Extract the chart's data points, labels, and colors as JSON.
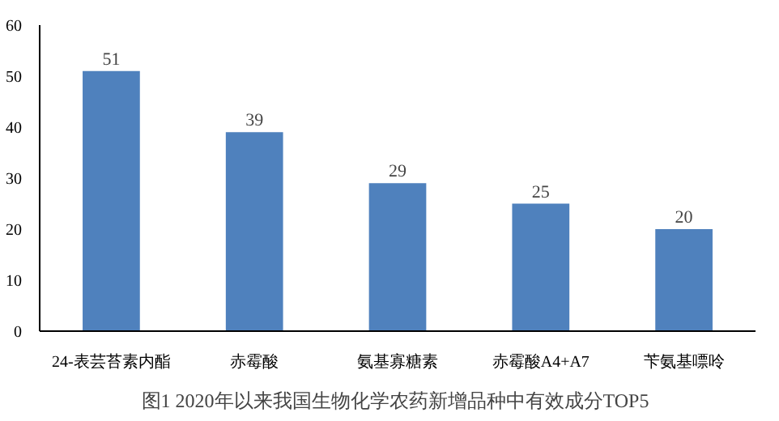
{
  "chart_data": {
    "type": "bar",
    "title": "图1  2020年以来我国生物化学农药新增品种中有效成分TOP5",
    "categories": [
      "24-表芸苔素内酯",
      "赤霉酸",
      "氨基寡糖素",
      "赤霉酸A4+A7",
      "苄氨基嘌呤"
    ],
    "values": [
      51,
      39,
      29,
      25,
      20
    ],
    "color": "#4f81bd",
    "ylim": [
      0,
      60
    ],
    "yticks": [
      0,
      10,
      20,
      30,
      40,
      50,
      60
    ],
    "grid": false,
    "data_labels": true
  }
}
